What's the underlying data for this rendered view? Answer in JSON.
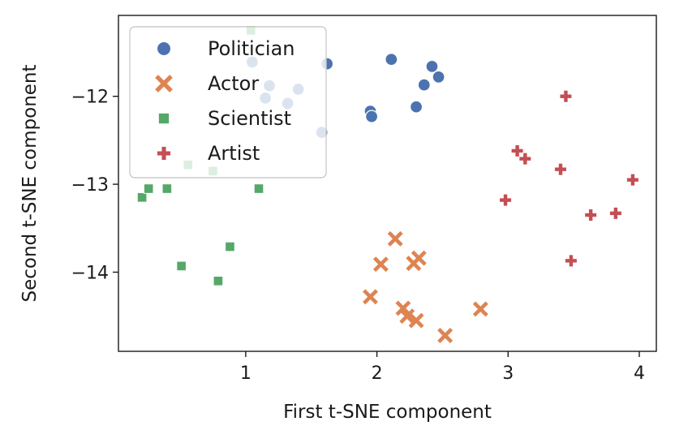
{
  "chart_data": {
    "type": "scatter",
    "title": "",
    "xlabel": "First t-SNE component",
    "ylabel": "Second t-SNE component",
    "xlim": [
      0.03,
      4.13
    ],
    "ylim": [
      -14.9,
      -11.08
    ],
    "xticks": [
      1,
      2,
      3,
      4
    ],
    "yticks": [
      -12,
      -13,
      -14
    ],
    "grid": false,
    "legend_position": "top-left",
    "series": [
      {
        "name": "Politician",
        "marker": "circle",
        "color": "#4c72b0",
        "points": [
          [
            1.05,
            -11.61
          ],
          [
            1.15,
            -12.02
          ],
          [
            1.18,
            -11.88
          ],
          [
            1.32,
            -12.08
          ],
          [
            1.4,
            -11.92
          ],
          [
            1.58,
            -12.41
          ],
          [
            1.62,
            -11.63
          ],
          [
            1.95,
            -12.17
          ],
          [
            1.96,
            -12.23
          ],
          [
            2.11,
            -11.58
          ],
          [
            2.3,
            -12.12
          ],
          [
            2.36,
            -11.87
          ],
          [
            2.42,
            -11.66
          ],
          [
            2.47,
            -11.78
          ]
        ]
      },
      {
        "name": "Actor",
        "marker": "x",
        "color": "#dd8452",
        "points": [
          [
            1.95,
            -14.28
          ],
          [
            2.03,
            -13.91
          ],
          [
            2.14,
            -13.62
          ],
          [
            2.2,
            -14.41
          ],
          [
            2.23,
            -14.5
          ],
          [
            2.28,
            -13.9
          ],
          [
            2.3,
            -14.55
          ],
          [
            2.32,
            -13.84
          ],
          [
            2.52,
            -14.72
          ],
          [
            2.79,
            -14.42
          ]
        ]
      },
      {
        "name": "Scientist",
        "marker": "square",
        "color": "#55a868",
        "points": [
          [
            0.21,
            -13.15
          ],
          [
            0.26,
            -13.05
          ],
          [
            0.4,
            -13.05
          ],
          [
            0.51,
            -13.93
          ],
          [
            0.56,
            -12.78
          ],
          [
            0.75,
            -12.85
          ],
          [
            0.79,
            -14.1
          ],
          [
            0.88,
            -13.71
          ],
          [
            1.04,
            -11.25
          ],
          [
            1.1,
            -13.05
          ]
        ]
      },
      {
        "name": "Artist",
        "marker": "plus",
        "color": "#c44e52",
        "points": [
          [
            2.98,
            -13.18
          ],
          [
            3.07,
            -12.62
          ],
          [
            3.13,
            -12.71
          ],
          [
            3.4,
            -12.83
          ],
          [
            3.44,
            -12.0
          ],
          [
            3.48,
            -13.87
          ],
          [
            3.63,
            -13.35
          ],
          [
            3.82,
            -13.33
          ],
          [
            3.95,
            -12.95
          ]
        ]
      }
    ]
  }
}
